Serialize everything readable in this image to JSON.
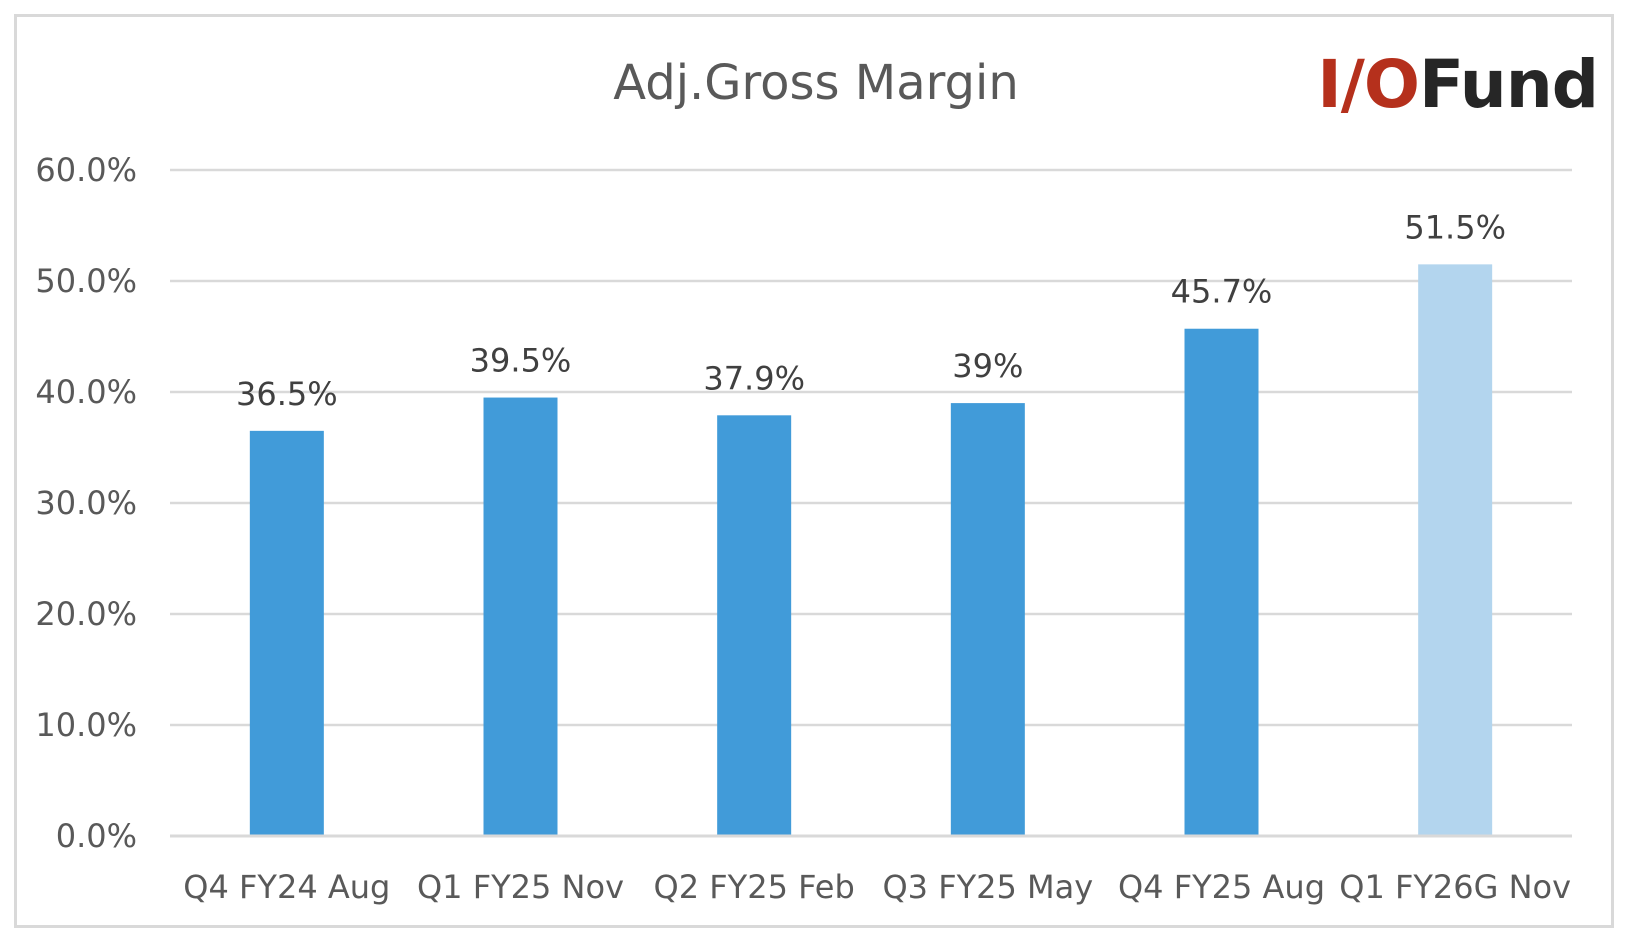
{
  "logo": {
    "prefix": "I/O",
    "suffix": "Fund",
    "prefix_color": "#b5301c",
    "suffix_color": "#262626"
  },
  "colors": {
    "bar": "#419bd9",
    "bar_highlight": "#b3d5ee",
    "gridline": "#d9d9d9"
  },
  "chart_data": {
    "type": "bar",
    "title": "Adj.Gross Margin",
    "xlabel": "",
    "ylabel": "",
    "categories": [
      "Q4 FY24 Aug",
      "Q1 FY25 Nov",
      "Q2 FY25 Feb",
      "Q3 FY25 May",
      "Q4 FY25 Aug",
      "Q1 FY26G Nov"
    ],
    "values": [
      36.5,
      39.5,
      37.9,
      39,
      45.7,
      51.5
    ],
    "data_labels": [
      "36.5%",
      "39.5%",
      "37.9%",
      "39%",
      "45.7%",
      "51.5%"
    ],
    "highlighted": [
      false,
      false,
      false,
      false,
      false,
      true
    ],
    "ylim": [
      0,
      60
    ],
    "yticks": [
      0,
      10,
      20,
      30,
      40,
      50,
      60
    ],
    "ytick_labels": [
      "0.0%",
      "10.0%",
      "20.0%",
      "30.0%",
      "40.0%",
      "50.0%",
      "60.0%"
    ],
    "grid": true,
    "legend": "none"
  }
}
